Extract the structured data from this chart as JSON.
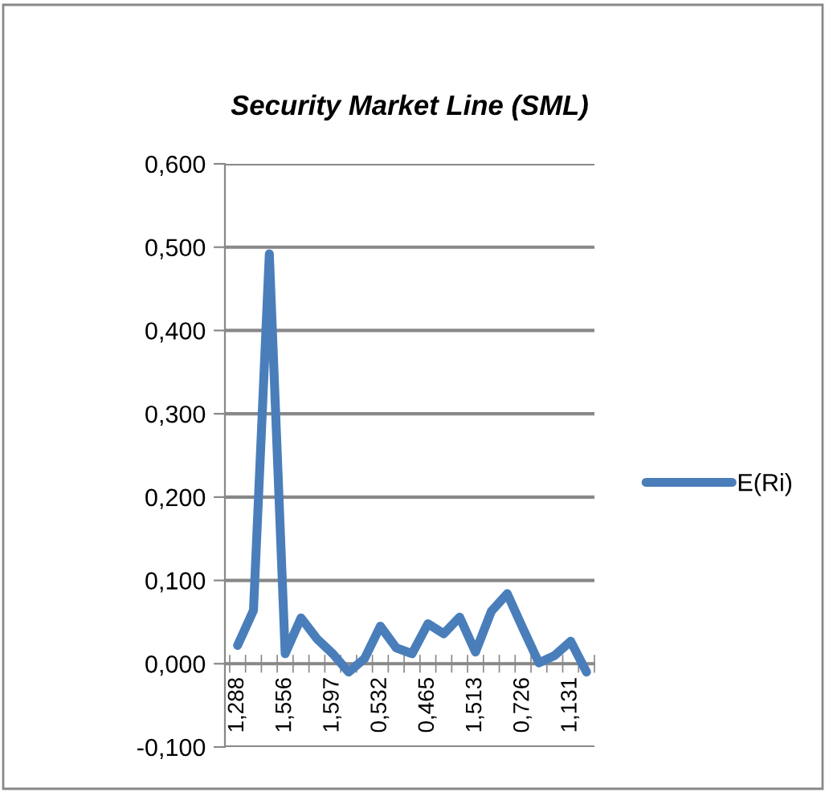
{
  "chart_data": {
    "type": "line",
    "title": "Security Market Line (SML)",
    "categories": [
      "1,288",
      null,
      null,
      "1,556",
      null,
      null,
      "1,597",
      null,
      null,
      "0,532",
      null,
      null,
      "0,465",
      null,
      null,
      "1,513",
      null,
      null,
      "0,726",
      null,
      null,
      "1,131",
      null
    ],
    "series": [
      {
        "name": "E(Ri)",
        "color": "#4a7ebb",
        "values": [
          0.022,
          0.064,
          0.492,
          0.012,
          0.055,
          0.03,
          0.012,
          -0.01,
          0.006,
          0.045,
          0.019,
          0.012,
          0.048,
          0.036,
          0.056,
          0.014,
          0.063,
          0.084,
          0.042,
          0.001,
          0.01,
          0.027,
          -0.01
        ]
      }
    ],
    "ylim": [
      -0.1,
      0.6
    ],
    "yticks": [
      {
        "value": -0.1,
        "label": "-0,100"
      },
      {
        "value": 0,
        "label": "0,000"
      },
      {
        "value": 0.1,
        "label": "0,100"
      },
      {
        "value": 0.2,
        "label": "0,200"
      },
      {
        "value": 0.3,
        "label": "0,300"
      },
      {
        "value": 0.4,
        "label": "0,400"
      },
      {
        "value": 0.5,
        "label": "0,500"
      },
      {
        "value": 0.6,
        "label": "0,600"
      }
    ],
    "grid": "y",
    "legend": "right",
    "marker": "none",
    "line_style": "solid"
  }
}
